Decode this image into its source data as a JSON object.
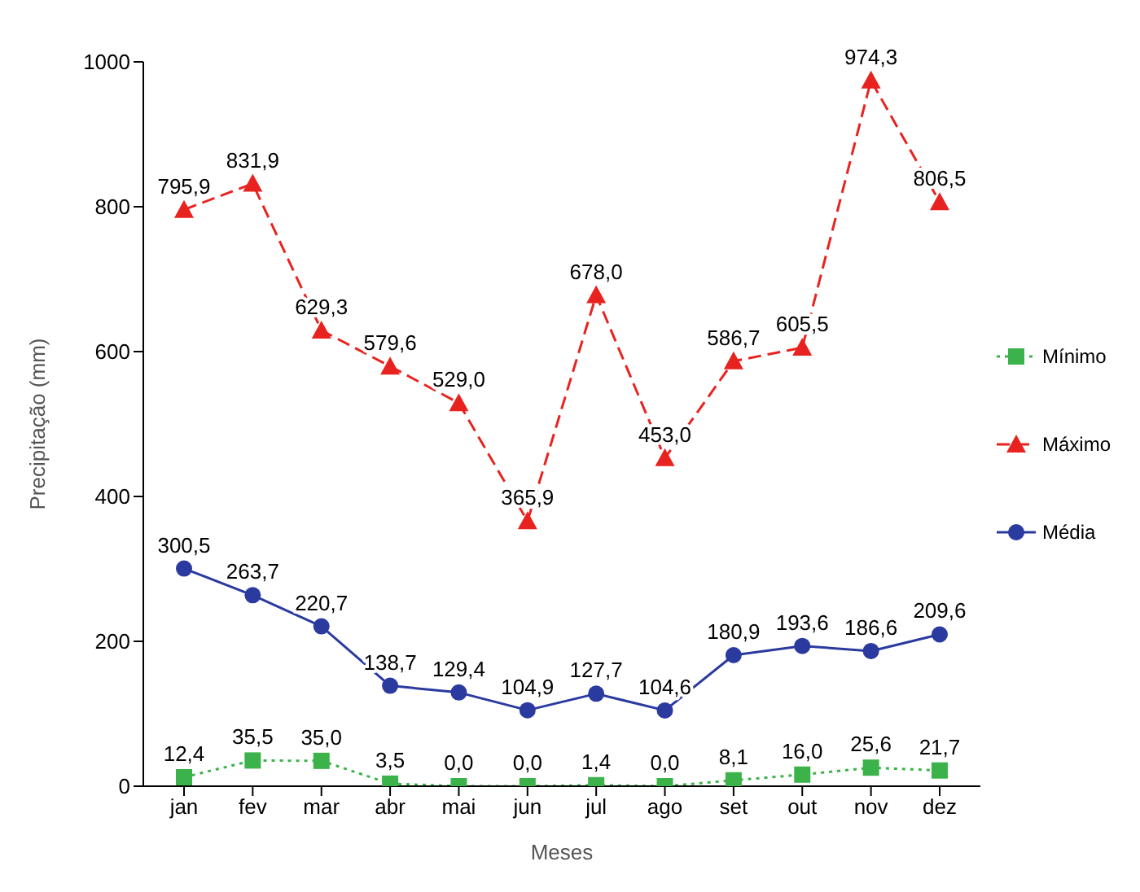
{
  "chart_data": {
    "type": "line",
    "xlabel": "Meses",
    "ylabel": "Precipitação (mm)",
    "categories": [
      "jan",
      "fev",
      "mar",
      "abr",
      "mai",
      "jun",
      "jul",
      "ago",
      "set",
      "out",
      "nov",
      "dez"
    ],
    "series": [
      {
        "name": "Mínimo",
        "color": "#3cb34a",
        "marker": "square",
        "line_style": "dotted",
        "values": [
          12.4,
          35.5,
          35.0,
          3.5,
          0.0,
          0.0,
          1.4,
          0.0,
          8.1,
          16.0,
          25.6,
          21.7
        ],
        "value_labels": [
          "12,4",
          "35,5",
          "35,0",
          "3,5",
          "0,0",
          "0,0",
          "1,4",
          "0,0",
          "8,1",
          "16,0",
          "25,6",
          "21,7"
        ]
      },
      {
        "name": "Máximo",
        "color": "#e8231f",
        "marker": "triangle",
        "line_style": "dashed",
        "values": [
          795.9,
          831.9,
          629.3,
          579.6,
          529.0,
          365.9,
          678.0,
          453.0,
          586.7,
          605.5,
          974.3,
          806.5
        ],
        "value_labels": [
          "795,9",
          "831,9",
          "629,3",
          "579,6",
          "529,0",
          "365,9",
          "678,0",
          "453,0",
          "586,7",
          "605,5",
          "974,3",
          "806,5"
        ]
      },
      {
        "name": "Média",
        "color": "#2a3a9f",
        "marker": "circle",
        "line_style": "solid",
        "values": [
          300.5,
          263.7,
          220.7,
          138.7,
          129.4,
          104.9,
          127.7,
          104.6,
          180.9,
          193.6,
          186.6,
          209.6
        ],
        "value_labels": [
          "300,5",
          "263,7",
          "220,7",
          "138,7",
          "129,4",
          "104,9",
          "127,7",
          "104,6",
          "180,9",
          "193,6",
          "186,6",
          "209,6"
        ]
      }
    ],
    "ylim": [
      0,
      1000
    ],
    "yticks": [
      0,
      200,
      400,
      600,
      800,
      1000
    ],
    "legend": "right"
  }
}
